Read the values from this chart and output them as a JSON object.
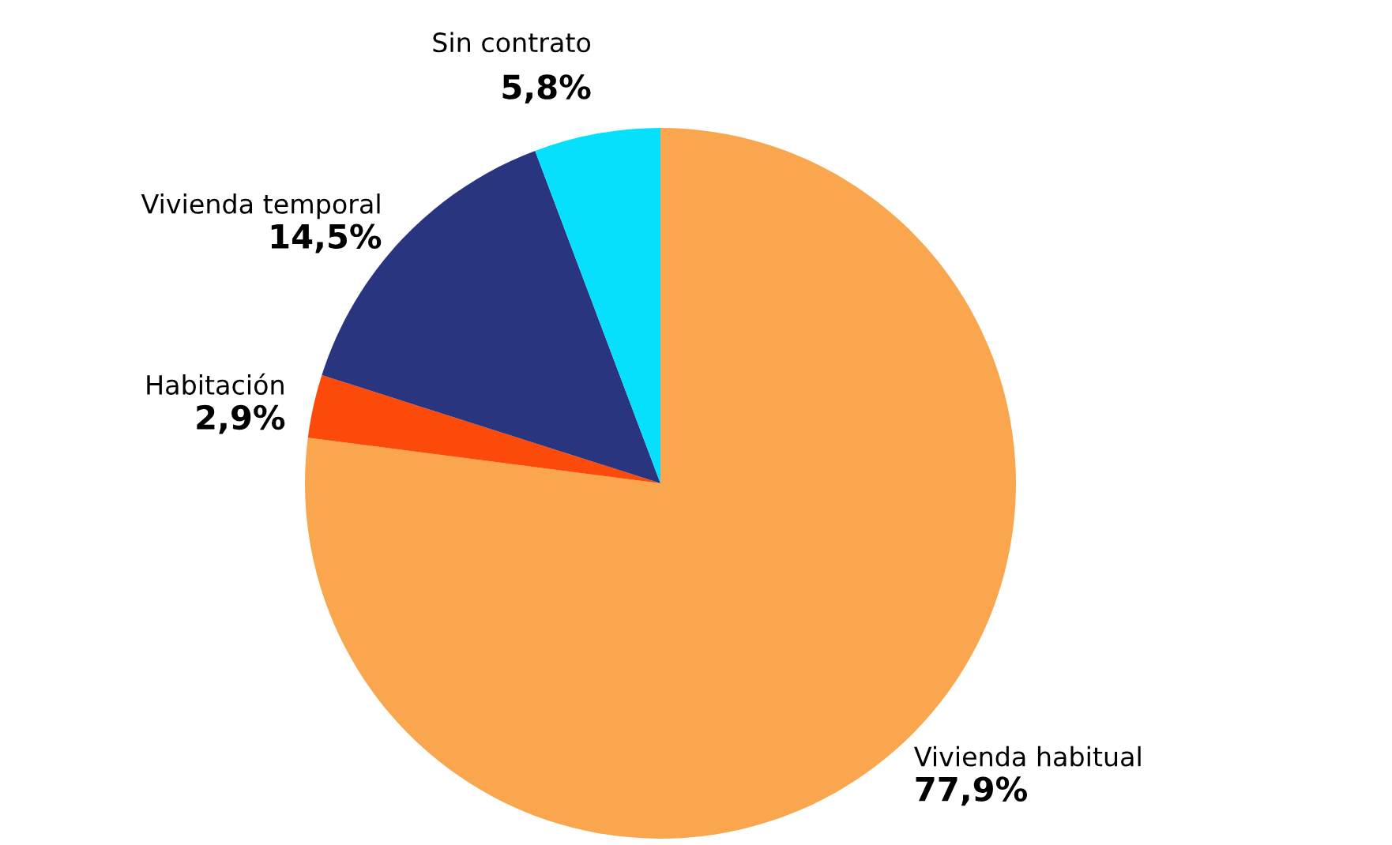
{
  "chart_data": {
    "type": "pie",
    "categories": [
      "Vivienda habitual",
      "Habitación",
      "Vivienda temporal",
      "Sin contrato"
    ],
    "values": [
      77.9,
      2.9,
      14.5,
      5.8
    ],
    "value_labels": [
      "77,9%",
      "2,9%",
      "14,5%",
      "5,8%"
    ],
    "colors": [
      "#f9a64f",
      "#fc4a0a",
      "#2a3580",
      "#06e0fc"
    ],
    "legend": false
  }
}
